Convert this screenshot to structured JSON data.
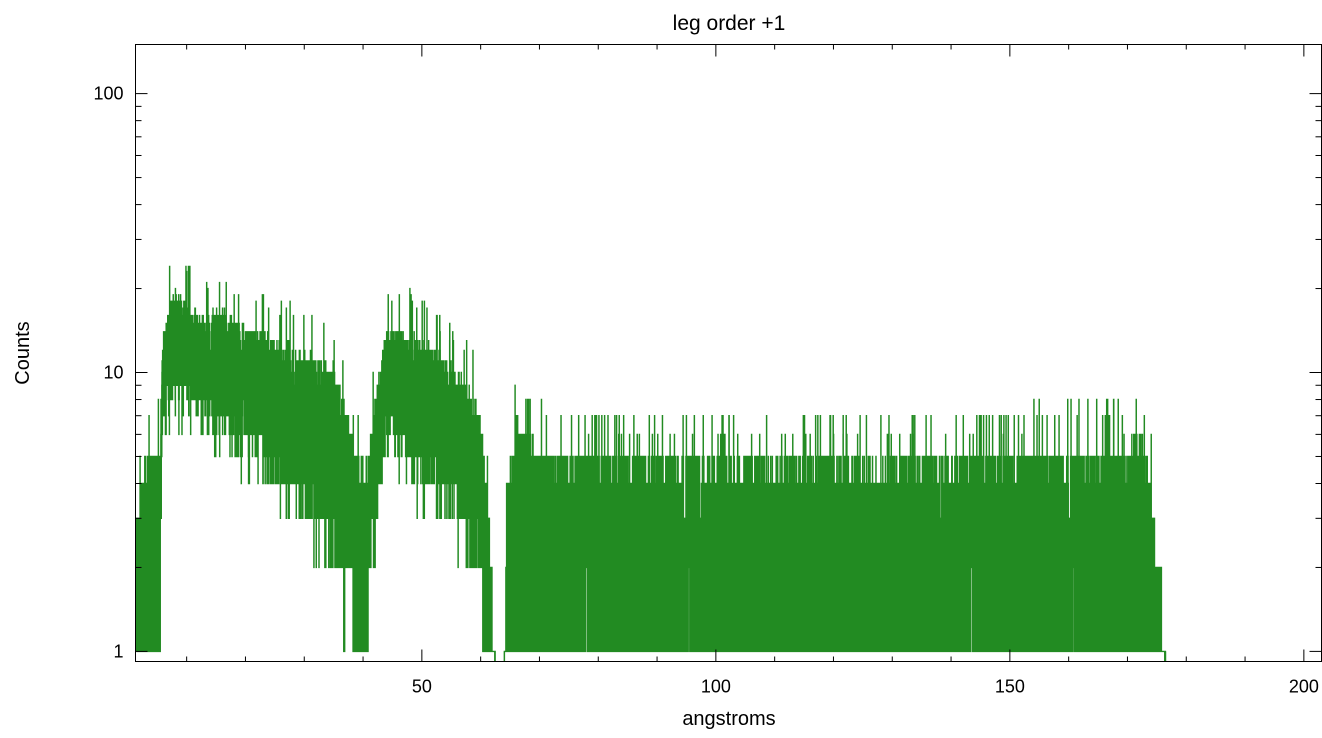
{
  "chart_data": {
    "type": "line",
    "title": "leg order +1",
    "xlabel": "angstroms",
    "ylabel": "Counts",
    "xlim": [
      1.3,
      203
    ],
    "ylim": [
      0.92,
      150
    ],
    "yscale": "log",
    "grid": false,
    "legend": "none",
    "line_color": "#228b22",
    "x_ticks": [
      50,
      100,
      150,
      200
    ],
    "x_tick_labels": [
      "50",
      "100",
      "150",
      "200"
    ],
    "y_ticks": [
      1,
      10,
      100
    ],
    "y_tick_labels": [
      "1",
      "10",
      "100"
    ],
    "series": [
      {
        "style": "step",
        "envelope_points": [
          {
            "x": 1.5,
            "base": 1.0,
            "peak": 4
          },
          {
            "x": 3,
            "base": 1.0,
            "peak": 7
          },
          {
            "x": 5.5,
            "base": 1.0,
            "peak": 8
          },
          {
            "x": 6,
            "base": 9,
            "peak": 20
          },
          {
            "x": 8,
            "base": 9,
            "peak": 29
          },
          {
            "x": 12,
            "base": 8,
            "peak": 23
          },
          {
            "x": 16,
            "base": 7,
            "peak": 24
          },
          {
            "x": 20,
            "base": 6,
            "peak": 21
          },
          {
            "x": 25,
            "base": 5,
            "peak": 19
          },
          {
            "x": 30,
            "base": 4,
            "peak": 17
          },
          {
            "x": 35,
            "base": 2.5,
            "peak": 15
          },
          {
            "x": 38,
            "base": 1.5,
            "peak": 9
          },
          {
            "x": 40.5,
            "base": 1.0,
            "peak": 6
          },
          {
            "x": 42,
            "base": 3,
            "peak": 11
          },
          {
            "x": 44,
            "base": 7,
            "peak": 21
          },
          {
            "x": 48,
            "base": 5,
            "peak": 20
          },
          {
            "x": 54,
            "base": 4,
            "peak": 16
          },
          {
            "x": 58,
            "base": 3,
            "peak": 13
          },
          {
            "x": 60,
            "base": 2,
            "peak": 10
          },
          {
            "x": 61.5,
            "base": 1.0,
            "peak": 4
          },
          {
            "x": 62.5,
            "base": 0,
            "peak": 0
          },
          {
            "x": 64,
            "base": 0,
            "peak": 0
          },
          {
            "x": 64.5,
            "base": 1.0,
            "peak": 5
          },
          {
            "x": 66,
            "base": 1.0,
            "peak": 10
          },
          {
            "x": 70,
            "base": 1.0,
            "peak": 8
          },
          {
            "x": 90,
            "base": 1.0,
            "peak": 7
          },
          {
            "x": 130,
            "base": 1.0,
            "peak": 7
          },
          {
            "x": 170,
            "base": 1.0,
            "peak": 8
          },
          {
            "x": 172,
            "base": 1.0,
            "peak": 9
          },
          {
            "x": 174,
            "base": 1.0,
            "peak": 6
          },
          {
            "x": 175,
            "base": 1.0,
            "peak": 3
          },
          {
            "x": 176,
            "base": 1.0,
            "peak": 2
          },
          {
            "x": 176.5,
            "base": 0,
            "peak": 0
          }
        ]
      }
    ]
  }
}
